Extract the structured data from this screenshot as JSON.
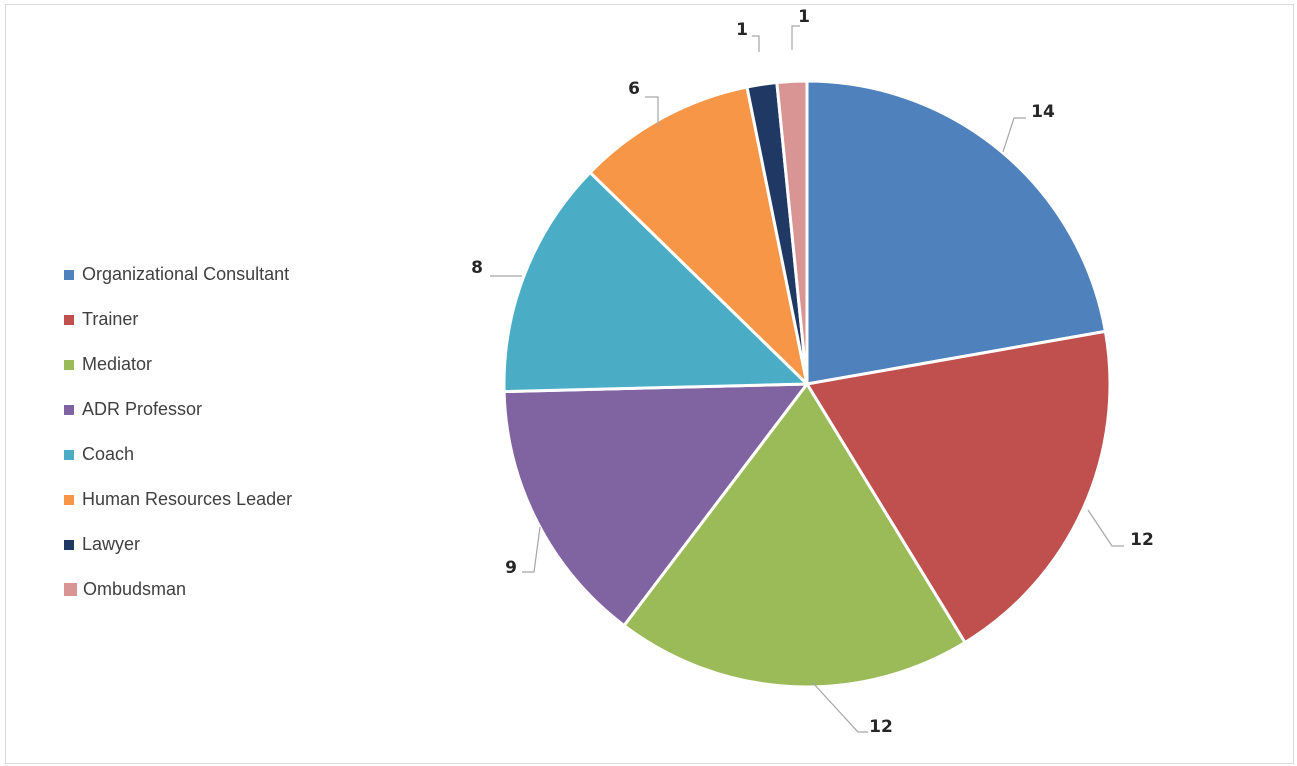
{
  "chart_data": {
    "type": "pie",
    "title": "",
    "legend_position": "left",
    "categories": [
      "Organizational Consultant",
      "Trainer",
      "Mediator",
      "ADR Professor",
      "Coach",
      "Human Resources Leader",
      "Lawyer",
      "Ombudsman"
    ],
    "values": [
      14,
      12,
      12,
      9,
      8,
      6,
      1,
      1
    ],
    "colors": [
      "#4f81bd",
      "#c0504d",
      "#9bbb59",
      "#8064a2",
      "#4bacc6",
      "#f79646",
      "#1f3864",
      "#d99594"
    ],
    "data_labels": [
      "14",
      "12",
      "12",
      "9",
      "8",
      "6",
      "1",
      "1"
    ]
  }
}
